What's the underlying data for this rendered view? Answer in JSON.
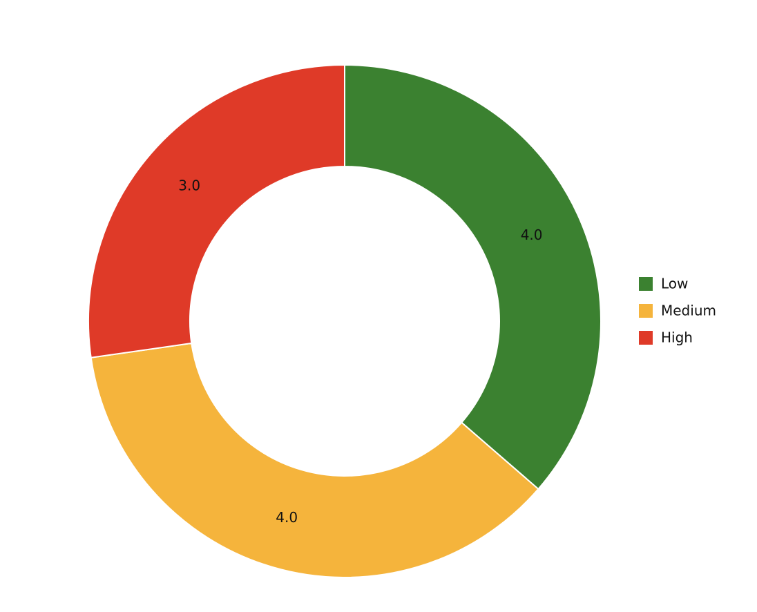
{
  "chart_data": {
    "type": "donut",
    "categories": [
      "Low",
      "Medium",
      "High"
    ],
    "values": [
      4,
      4,
      3
    ],
    "value_labels": [
      "4.0",
      "4.0",
      "3.0"
    ],
    "colors": [
      "#3b8130",
      "#f5b43c",
      "#df3a28"
    ],
    "legend": "right"
  }
}
